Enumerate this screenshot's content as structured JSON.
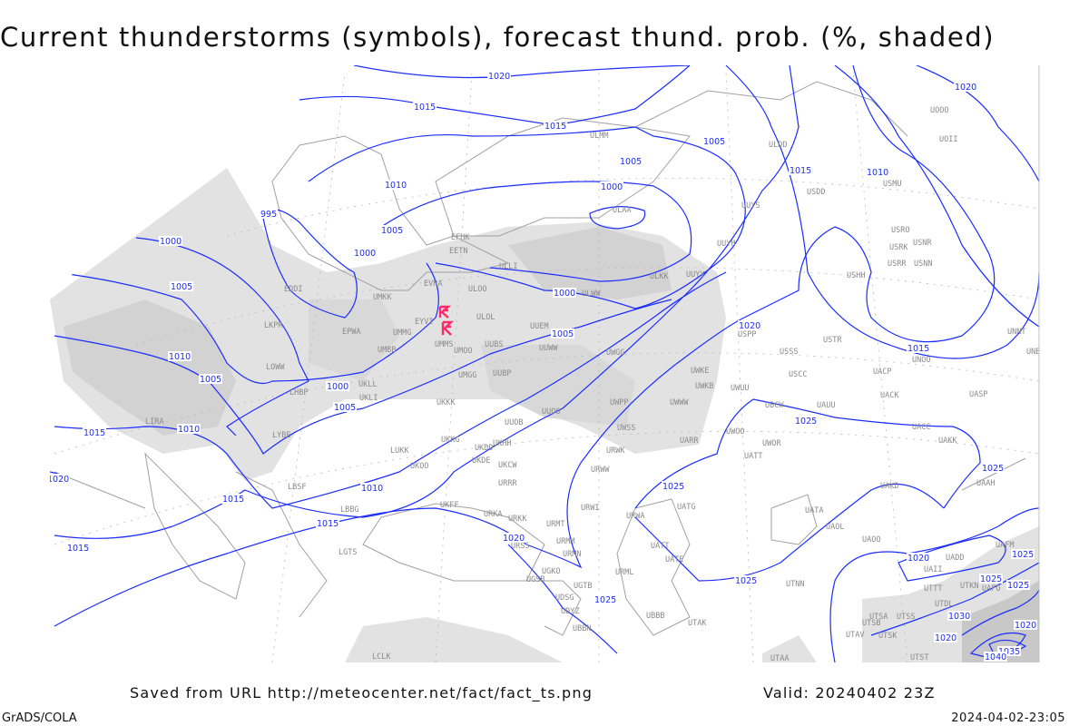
{
  "title": "Current thunderstorms (symbols), forecast thund. prob. (%, shaded)",
  "footer": {
    "saved_from": "Saved from URL http://meteocenter.net/fact/fact_ts.png",
    "valid": "Valid: 20240402 23Z",
    "software": "GrADS/COLA",
    "timestamp": "2024-04-02-23:05"
  },
  "colors": {
    "isobar": "#1a2cff",
    "shading_light": "#e2e2e2",
    "shading_dark": "#c8c8c8",
    "coastline": "#a0a0a0",
    "thunderstorm_symbol": "#ff2a6a"
  },
  "thunderstorm_symbols": [
    "thunderstorm-icon",
    "thunderstorm-icon"
  ],
  "stations": [
    "ULMM",
    "EFHK",
    "EETN",
    "ULLI",
    "EVRA",
    "ULOO",
    "UMKK",
    "EDDI",
    "LKPR",
    "EPWA",
    "UMMG",
    "EYVI",
    "ULOL",
    "UMMS",
    "UMOO",
    "UUBS",
    "UUEM",
    "UMBB",
    "LOWW",
    "UMGG",
    "UUBP",
    "UKLL",
    "UKLI",
    "LHBP",
    "UKKK",
    "LIRA",
    "LYBE",
    "UUOB",
    "UUOO",
    "UKHH",
    "UKDD",
    "UKKG",
    "UKDE",
    "LUKK",
    "UKOO",
    "UKCW",
    "URRR",
    "UKFF",
    "URKA",
    "URKK",
    "URMT",
    "URWI",
    "URMM",
    "URMN",
    "URSS",
    "UGKO",
    "UGSB",
    "UGTB",
    "UDSG",
    "UDYZ",
    "UBBN",
    "UBBB",
    "URML",
    "UTAK",
    "UATG",
    "URWA",
    "UATT",
    "UATE",
    "URWW",
    "URWK",
    "UWSS",
    "UWPP",
    "UWWW",
    "UWKE",
    "UWKB",
    "UWUU",
    "UWGG",
    "UUWW",
    "UUYY",
    "ULWW",
    "ULKK",
    "UUYH",
    "UUYS",
    "ULAA",
    "ULDD",
    "USDD",
    "USMU",
    "USRO",
    "USRK",
    "USNR",
    "USRR",
    "USNN",
    "USHH",
    "USPP",
    "USSS",
    "USTR",
    "USCC",
    "UACP",
    "UNOO",
    "UACK",
    "UASP",
    "UNNT",
    "UNBB",
    "UOII",
    "UOOO",
    "UBCW",
    "UAUU",
    "UACC",
    "UAKK",
    "UWOO",
    "UWOR",
    "UARR",
    "UATT",
    "UAKD",
    "UATA",
    "UAOL",
    "UAOO",
    "UAAH",
    "UAFM",
    "UADD",
    "UAII",
    "UTTT",
    "UTKN",
    "UAFO",
    "UTDL",
    "UTSA",
    "UTSS",
    "UTSB",
    "UTAV",
    "UTSK",
    "UTAA",
    "UTST",
    "UTNN",
    "LCLK",
    "LBSF",
    "LBBG",
    "LGTS"
  ],
  "isobar_labels": [
    "1020",
    "1015",
    "1015",
    "1005",
    "1010",
    "1015",
    "1020",
    "1005",
    "1000",
    "1010",
    "1005",
    "995",
    "1000",
    "1000",
    "1005",
    "1000",
    "1005",
    "1010",
    "1005",
    "1000",
    "1005",
    "1015",
    "1010",
    "1020",
    "1015",
    "1025",
    "1025",
    "1025",
    "1010",
    "1015",
    "1015",
    "1020",
    "1015",
    "1020",
    "1025",
    "1025",
    "1020",
    "1025",
    "1025",
    "1025",
    "1030",
    "1020",
    "1020",
    "1035",
    "1040"
  ]
}
